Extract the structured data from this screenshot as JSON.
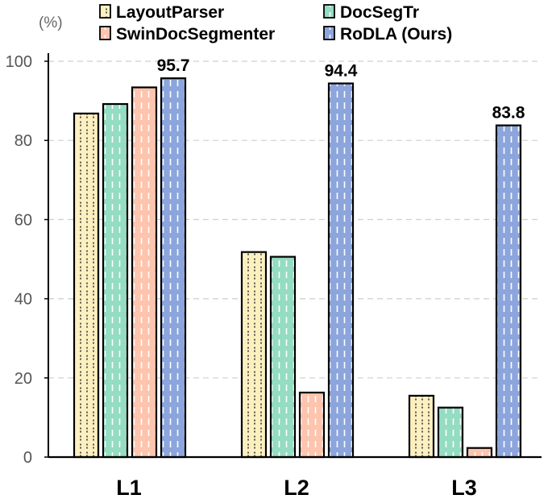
{
  "chart_data": {
    "type": "bar",
    "title": "",
    "xlabel": "",
    "ylabel": "(%)",
    "ylim": [
      0,
      100
    ],
    "yticks": [
      0,
      20,
      40,
      60,
      80,
      100
    ],
    "grid": true,
    "legend_position": "top",
    "categories": [
      "L1",
      "L2",
      "L3"
    ],
    "series": [
      {
        "name": "LayoutParser",
        "values": [
          86.8,
          51.8,
          15.5
        ],
        "color": "#fdf0c0"
      },
      {
        "name": "DocSegTr",
        "values": [
          89.2,
          50.6,
          12.5
        ],
        "color": "#94dcc2"
      },
      {
        "name": "SwinDocSegmenter",
        "values": [
          93.4,
          16.3,
          2.3
        ],
        "color": "#fdc4ae"
      },
      {
        "name": "RoDLA (Ours)",
        "values": [
          95.7,
          94.4,
          83.8
        ],
        "color": "#8ca5dc"
      }
    ],
    "data_labels": [
      {
        "category": "L1",
        "series": "RoDLA (Ours)",
        "text": "95.7",
        "value": 95.7
      },
      {
        "category": "L2",
        "series": "RoDLA (Ours)",
        "text": "94.4",
        "value": 94.4
      },
      {
        "category": "L3",
        "series": "RoDLA (Ours)",
        "text": "83.8",
        "value": 83.8
      }
    ]
  }
}
